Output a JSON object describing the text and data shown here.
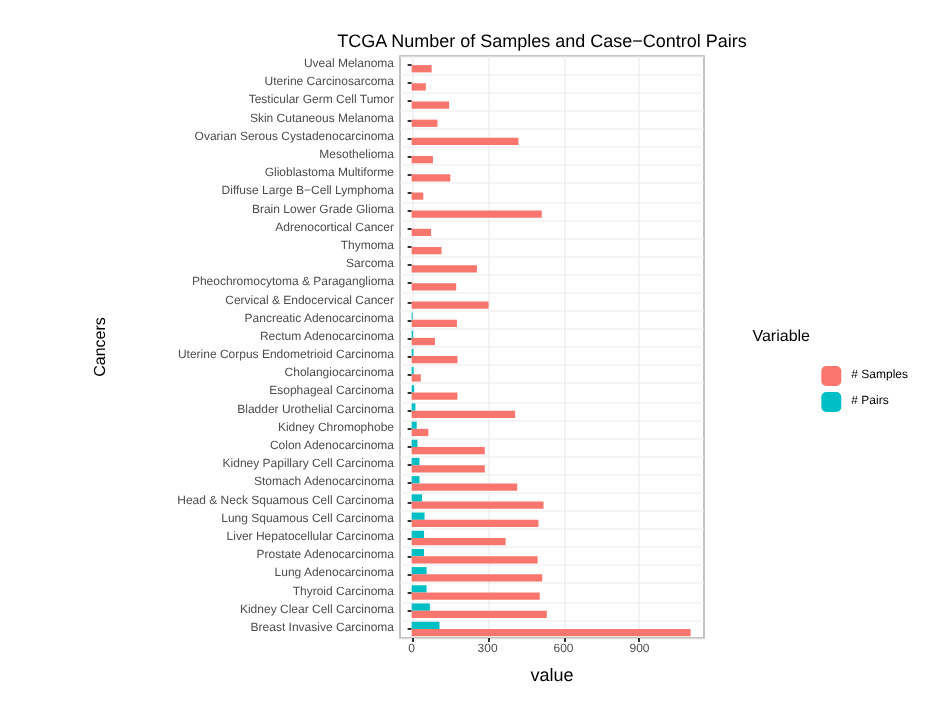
{
  "chart_data": {
    "type": "bar",
    "orientation": "horizontal",
    "title": "TCGA Number of Samples and Case−Control Pairs",
    "xlabel": "value",
    "ylabel": "Cancers",
    "legend_title": "Variable",
    "legend": "right",
    "categories": [
      "Uveal Melanoma",
      "Uterine Carcinosarcoma",
      "Testicular Germ Cell Tumor",
      "Skin Cutaneous Melanoma",
      "Ovarian Serous Cystadenocarcinoma",
      "Mesothelioma",
      "Glioblastoma Multiforme",
      "Diffuse Large B−Cell Lymphoma",
      "Brain Lower Grade Glioma",
      "Adrenocortical Cancer",
      "Thymoma",
      "Sarcoma",
      "Pheochromocytoma & Paraganglioma",
      "Cervical & Endocervical Cancer",
      "Pancreatic Adenocarcinoma",
      "Rectum Adenocarcinoma",
      "Uterine Corpus Endometrioid Carcinoma",
      "Cholangiocarcinoma",
      "Esophageal Carcinoma",
      "Bladder Urothelial Carcinoma",
      "Kidney Chromophobe",
      "Colon Adenocarcinoma",
      "Kidney Papillary Cell Carcinoma",
      "Stomach Adenocarcinoma",
      "Head & Neck Squamous Cell Carcinoma",
      "Lung Squamous Cell Carcinoma",
      "Liver Hepatocellular Carcinoma",
      "Prostate Adenocarcinoma",
      "Lung Adenocarcinoma",
      "Thyroid Carcinoma",
      "Kidney Clear Cell Carcinoma",
      "Breast Invasive Carcinoma"
    ],
    "series": [
      {
        "name": "# Samples",
        "color": "#f8766d",
        "values": [
          79,
          56,
          148,
          102,
          422,
          84,
          153,
          46,
          514,
          77,
          118,
          258,
          176,
          304,
          179,
          92,
          181,
          36,
          181,
          409,
          66,
          289,
          289,
          417,
          521,
          501,
          371,
          498,
          516,
          506,
          534,
          1102
        ]
      },
      {
        "name": "# Pairs",
        "color": "#00bfc4",
        "values": [
          0,
          0,
          0,
          0,
          0,
          0,
          0,
          0,
          0,
          0,
          0,
          0,
          null,
          null,
          4,
          6,
          7,
          8,
          10,
          15,
          20,
          23,
          31,
          31,
          41,
          51,
          49,
          49,
          59,
          59,
          72,
          110
        ]
      }
    ],
    "xlim": [
      -46,
      1155
    ],
    "xticks": [
      0,
      300,
      600,
      900
    ],
    "grid": true
  }
}
